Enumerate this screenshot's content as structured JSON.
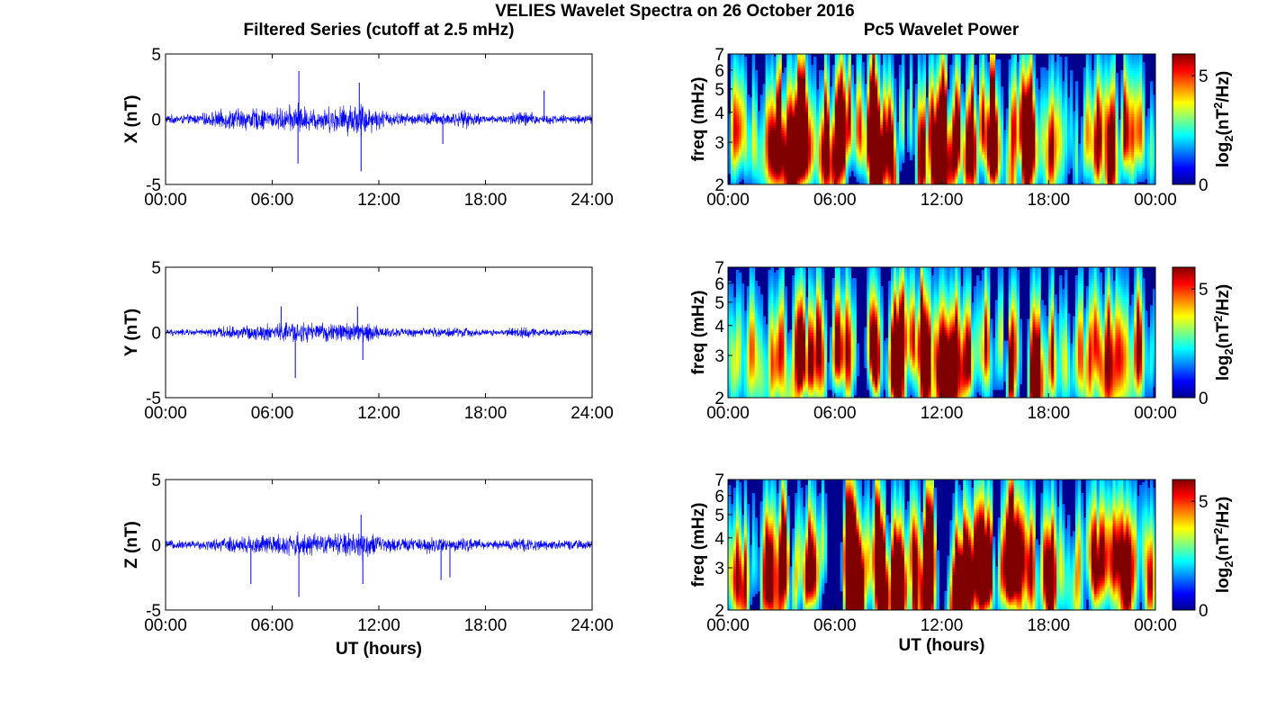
{
  "figure": {
    "title": "VELIES Wavelet Spectra on 26 October 2016",
    "left_column_title": "Filtered Series (cutoff at 2.5 mHz)",
    "right_column_title": "Pc5 Wavelet Power"
  },
  "chart_data": [
    {
      "type": "line",
      "component": "X",
      "ylabel": "X (nT)",
      "xlabel": "",
      "xlim_hours": [
        0,
        24
      ],
      "ylim": [
        -5,
        5
      ],
      "xticks": [
        "00:00",
        "06:00",
        "12:00",
        "18:00",
        "24:00"
      ],
      "yticks": [
        "-5",
        "0",
        "5"
      ],
      "color": "#0000ff",
      "envelope": {
        "hours": [
          0,
          1,
          2,
          3,
          4,
          5,
          6,
          7,
          7.5,
          8,
          9,
          10,
          11,
          12,
          13,
          14,
          15,
          16,
          17,
          18,
          19,
          20,
          21,
          22,
          23,
          24
        ],
        "amplitude_nT": [
          0.4,
          0.4,
          0.5,
          0.8,
          1.0,
          1.0,
          0.9,
          1.2,
          1.5,
          1.0,
          1.1,
          1.3,
          1.6,
          0.9,
          0.6,
          0.5,
          0.7,
          0.6,
          0.8,
          0.4,
          0.4,
          0.8,
          0.5,
          0.4,
          0.4,
          0.4
        ]
      },
      "spikes": [
        {
          "hour": 7.5,
          "value_nT": 3.7
        },
        {
          "hour": 7.45,
          "value_nT": -3.4
        },
        {
          "hour": 11.0,
          "value_nT": -4.0
        },
        {
          "hour": 10.9,
          "value_nT": 2.8
        },
        {
          "hour": 15.6,
          "value_nT": -1.9
        },
        {
          "hour": 21.3,
          "value_nT": 2.2
        }
      ]
    },
    {
      "type": "line",
      "component": "Y",
      "ylabel": "Y (nT)",
      "xlabel": "",
      "xlim_hours": [
        0,
        24
      ],
      "ylim": [
        -5,
        5
      ],
      "xticks": [
        "00:00",
        "06:00",
        "12:00",
        "18:00",
        "24:00"
      ],
      "yticks": [
        "-5",
        "0",
        "5"
      ],
      "color": "#0000ff",
      "envelope": {
        "hours": [
          0,
          1,
          2,
          3,
          4,
          5,
          6,
          7,
          8,
          9,
          10,
          11,
          12,
          13,
          14,
          15,
          16,
          17,
          18,
          19,
          20,
          21,
          22,
          23,
          24
        ],
        "amplitude_nT": [
          0.3,
          0.3,
          0.3,
          0.5,
          0.6,
          0.7,
          0.8,
          1.0,
          0.9,
          0.8,
          0.9,
          1.0,
          0.6,
          0.4,
          0.4,
          0.4,
          0.5,
          0.4,
          0.3,
          0.3,
          0.6,
          0.4,
          0.3,
          0.3,
          0.3
        ]
      },
      "spikes": [
        {
          "hour": 7.3,
          "value_nT": -3.5
        },
        {
          "hour": 6.5,
          "value_nT": 2.0
        },
        {
          "hour": 10.8,
          "value_nT": 2.0
        },
        {
          "hour": 11.1,
          "value_nT": -2.1
        }
      ]
    },
    {
      "type": "line",
      "component": "Z",
      "ylabel": "Z (nT)",
      "xlabel": "UT (hours)",
      "xlim_hours": [
        0,
        24
      ],
      "ylim": [
        -5,
        5
      ],
      "xticks": [
        "00:00",
        "06:00",
        "12:00",
        "18:00",
        "24:00"
      ],
      "yticks": [
        "-5",
        "0",
        "5"
      ],
      "color": "#0000ff",
      "envelope": {
        "hours": [
          0,
          1,
          2,
          3,
          4,
          5,
          6,
          7,
          8,
          9,
          10,
          11,
          12,
          13,
          14,
          15,
          16,
          17,
          18,
          19,
          20,
          21,
          22,
          23,
          24
        ],
        "amplitude_nT": [
          0.4,
          0.4,
          0.4,
          0.6,
          0.8,
          0.9,
          0.9,
          1.1,
          1.0,
          0.9,
          1.1,
          1.4,
          0.8,
          0.6,
          0.6,
          0.8,
          0.6,
          0.6,
          0.4,
          0.4,
          0.7,
          0.5,
          0.4,
          0.4,
          0.4
        ]
      },
      "spikes": [
        {
          "hour": 4.8,
          "value_nT": -3.0
        },
        {
          "hour": 7.5,
          "value_nT": -4.0
        },
        {
          "hour": 11.0,
          "value_nT": 2.3
        },
        {
          "hour": 11.1,
          "value_nT": -3.0
        },
        {
          "hour": 15.5,
          "value_nT": -2.7
        },
        {
          "hour": 16.0,
          "value_nT": -2.5
        }
      ]
    },
    {
      "type": "heatmap",
      "component": "X",
      "title": "Pc5 Wavelet Power",
      "ylabel": "freq (mHz)",
      "xlabel": "",
      "xlim_hours": [
        0,
        24
      ],
      "ylim_mHz": [
        2,
        7
      ],
      "y_scale": "log",
      "xticks": [
        "00:00",
        "06:00",
        "12:00",
        "18:00",
        "00:00"
      ],
      "yticks": [
        "2",
        "3",
        "4",
        "5",
        "6",
        "7"
      ],
      "colorbar": {
        "label": "log2(nT^2/Hz)",
        "range": [
          0,
          6
        ],
        "ticks": [
          "0",
          "5"
        ],
        "colormap": "jet"
      },
      "activity_hours": [
        0,
        1,
        2,
        3,
        4,
        5,
        6,
        7,
        8,
        9,
        10,
        11,
        12,
        13,
        14,
        15,
        16,
        17,
        18,
        19,
        20,
        21,
        22,
        23,
        24
      ],
      "activity_level": [
        0.55,
        0.5,
        0.55,
        0.75,
        0.85,
        0.9,
        0.85,
        0.9,
        0.95,
        0.95,
        1.0,
        0.95,
        0.85,
        0.75,
        0.8,
        0.8,
        0.7,
        0.65,
        0.45,
        0.45,
        0.7,
        0.6,
        0.55,
        0.5,
        0.4
      ]
    },
    {
      "type": "heatmap",
      "component": "Y",
      "ylabel": "freq (mHz)",
      "xlabel": "",
      "xlim_hours": [
        0,
        24
      ],
      "ylim_mHz": [
        2,
        7
      ],
      "y_scale": "log",
      "xticks": [
        "00:00",
        "06:00",
        "12:00",
        "18:00",
        "00:00"
      ],
      "yticks": [
        "2",
        "3",
        "4",
        "5",
        "6",
        "7"
      ],
      "colorbar": {
        "label": "log2(nT^2/Hz)",
        "range": [
          0,
          6
        ],
        "ticks": [
          "0",
          "5"
        ],
        "colormap": "jet"
      },
      "activity_hours": [
        0,
        1,
        2,
        3,
        4,
        5,
        6,
        7,
        8,
        9,
        10,
        11,
        12,
        13,
        14,
        15,
        16,
        17,
        18,
        19,
        20,
        21,
        22,
        23,
        24
      ],
      "activity_level": [
        0.35,
        0.35,
        0.4,
        0.6,
        0.75,
        0.8,
        0.95,
        0.85,
        0.8,
        0.8,
        0.85,
        0.8,
        0.65,
        0.55,
        0.55,
        0.6,
        0.6,
        0.55,
        0.4,
        0.45,
        0.65,
        0.5,
        0.4,
        0.4,
        0.35
      ]
    },
    {
      "type": "heatmap",
      "component": "Z",
      "ylabel": "freq (mHz)",
      "xlabel": "UT (hours)",
      "xlim_hours": [
        0,
        24
      ],
      "ylim_mHz": [
        2,
        7
      ],
      "y_scale": "log",
      "xticks": [
        "00:00",
        "06:00",
        "12:00",
        "18:00",
        "00:00"
      ],
      "yticks": [
        "2",
        "3",
        "4",
        "5",
        "6",
        "7"
      ],
      "colorbar": {
        "label": "log2(nT^2/Hz)",
        "range": [
          0,
          6
        ],
        "ticks": [
          "0",
          "5"
        ],
        "colormap": "jet"
      },
      "activity_hours": [
        0,
        1,
        2,
        3,
        4,
        5,
        6,
        7,
        8,
        9,
        10,
        11,
        12,
        13,
        14,
        15,
        16,
        17,
        18,
        19,
        20,
        21,
        22,
        23,
        24
      ],
      "activity_level": [
        0.55,
        0.5,
        0.55,
        0.8,
        0.85,
        0.9,
        0.9,
        0.95,
        0.95,
        0.95,
        1.0,
        0.95,
        0.85,
        0.75,
        0.8,
        0.8,
        0.7,
        0.65,
        0.45,
        0.45,
        0.7,
        0.6,
        0.55,
        0.5,
        0.4
      ]
    }
  ]
}
